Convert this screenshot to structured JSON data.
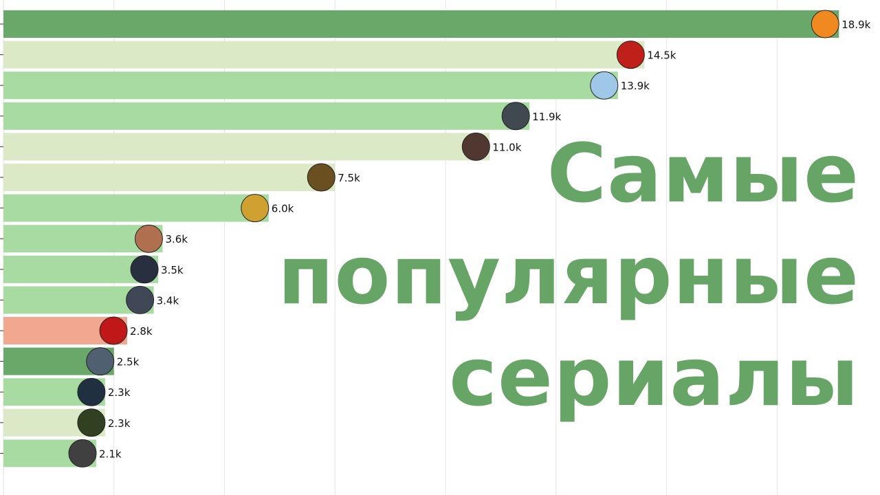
{
  "chart_data": {
    "type": "bar",
    "orientation": "horizontal",
    "title": "Самые популярные сериалы",
    "unit_suffix": "k",
    "values": [
      18.9,
      14.5,
      13.9,
      11.9,
      11.0,
      7.5,
      6.0,
      3.6,
      3.5,
      3.4,
      2.8,
      2.5,
      2.3,
      2.3,
      2.1
    ],
    "labels": [
      "18.9k",
      "14.5k",
      "13.9k",
      "11.9k",
      "11.0k",
      "7.5k",
      "6.0k",
      "3.6k",
      "3.5k",
      "3.4k",
      "2.8k",
      "2.5k",
      "2.3k",
      "2.3k",
      "2.1k"
    ],
    "bar_colors": [
      "#6aa86a",
      "#dce9c6",
      "#a8dba2",
      "#a8dba2",
      "#dce9c6",
      "#dce9c6",
      "#a8dba2",
      "#a8dba2",
      "#a8dba2",
      "#a8dba2",
      "#f2a890",
      "#6aa86a",
      "#a8dba2",
      "#dce9c6",
      "#a8dba2"
    ],
    "poster_colors": [
      "#f08a20",
      "#c0201a",
      "#9fc8e8",
      "#404850",
      "#503830",
      "#6a5020",
      "#d0a030",
      "#b07050",
      "#283040",
      "#404858",
      "#c01818",
      "#506070",
      "#203040",
      "#304020",
      "#404040"
    ],
    "xlim": [
      0,
      20
    ],
    "grid_step": 2.5,
    "grid": true,
    "legend": "none"
  }
}
